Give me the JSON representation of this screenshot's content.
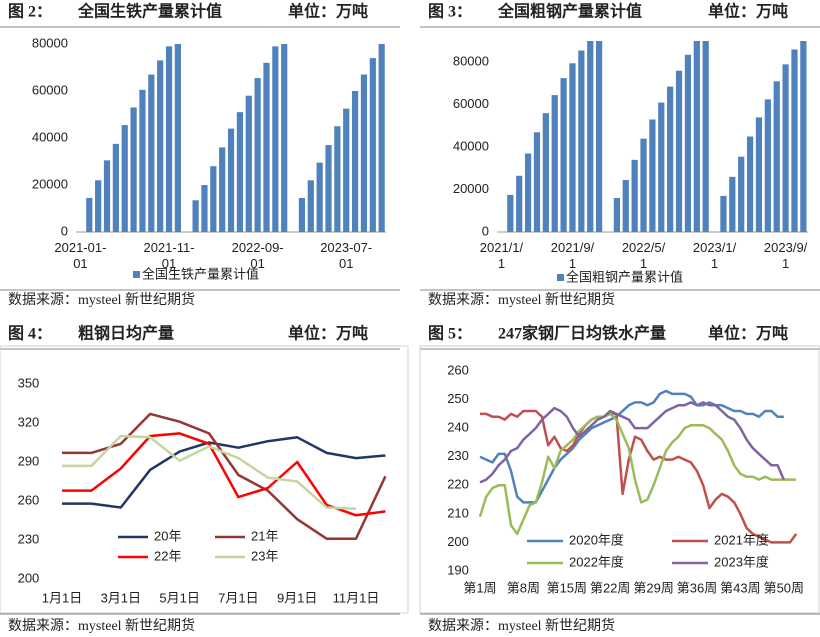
{
  "chart_data": [
    {
      "type": "bar",
      "figure": "图 2：",
      "title": "全国生铁产量累计值",
      "unit": "单位：万吨",
      "source": "数据来源：mysteel 新世纪期货",
      "categories": [
        "2021-01-01",
        null,
        null,
        null,
        null,
        null,
        null,
        null,
        null,
        null,
        "2021-11-01",
        null,
        null,
        null,
        null,
        null,
        null,
        null,
        null,
        null,
        "2022-09-01",
        null,
        null,
        null,
        null,
        null,
        null,
        null,
        null,
        null,
        "2023-07-01",
        null,
        null,
        null,
        null
      ],
      "series": [
        {
          "name": "全国生铁产量累计值",
          "color": "#4f81bd",
          "values": [
            null,
            14500,
            22000,
            30500,
            37500,
            45500,
            53000,
            60500,
            67000,
            73000,
            79000,
            80000,
            null,
            13500,
            20000,
            28000,
            36000,
            44000,
            51000,
            58000,
            65500,
            72000,
            79000,
            80000,
            null,
            14500,
            22000,
            29500,
            37000,
            45000,
            52500,
            60000,
            67000,
            74000,
            80000
          ]
        }
      ],
      "ylim": [
        0,
        80000
      ],
      "yticks": [
        0,
        20000,
        40000,
        60000,
        80000
      ]
    },
    {
      "type": "bar",
      "figure": "图 3：",
      "title": "全国粗钢产量累计值",
      "unit": "单位：万吨",
      "source": "数据来源：mysteel 新世纪期货",
      "categories": [
        "2021/1/1",
        null,
        null,
        null,
        null,
        null,
        null,
        null,
        "2021/9/1",
        null,
        null,
        null,
        null,
        null,
        null,
        null,
        "2022/5/1",
        null,
        null,
        null,
        null,
        null,
        null,
        null,
        "2023/1/1",
        null,
        null,
        null,
        null,
        null,
        null,
        null,
        "2023/9/1",
        null,
        null
      ],
      "series": [
        {
          "name": "全国粗钢产量累计值",
          "color": "#4f81bd",
          "values": [
            null,
            17500,
            26500,
            37000,
            47000,
            56000,
            64500,
            72500,
            79500,
            85500,
            90000,
            90000,
            null,
            16000,
            24500,
            34000,
            44000,
            53000,
            61000,
            68500,
            76000,
            83500,
            90000,
            90000,
            null,
            17000,
            26000,
            35500,
            45000,
            54000,
            62500,
            71000,
            79000,
            86000,
            90000
          ]
        }
      ],
      "ylim": [
        0,
        90000
      ],
      "yticks": [
        0,
        20000,
        40000,
        60000,
        80000
      ]
    },
    {
      "type": "line",
      "figure": "图 4：",
      "title": "粗钢日均产量",
      "unit": "单位：万吨",
      "source": "数据来源：mysteel 新世纪期货",
      "categories": [
        "1月1日",
        null,
        "3月1日",
        null,
        "5月1日",
        null,
        "7月1日",
        null,
        "9月1日",
        null,
        "11月1日",
        null
      ],
      "series": [
        {
          "name": "20年",
          "color": "#203864",
          "values": [
            258,
            258,
            255,
            284,
            298,
            305,
            301,
            306,
            309,
            297,
            293,
            295
          ]
        },
        {
          "name": "21年",
          "color": "#943634",
          "values": [
            297,
            297,
            304,
            327,
            321,
            312,
            280,
            268,
            246,
            231,
            231,
            279
          ]
        },
        {
          "name": "22年",
          "color": "#ff0000",
          "values": [
            268,
            268,
            285,
            310,
            312,
            304,
            263,
            270,
            290,
            257,
            249,
            252
          ]
        },
        {
          "name": "23年",
          "color": "#c3d69b",
          "values": [
            287,
            287,
            310,
            309,
            291,
            302,
            293,
            278,
            275,
            255,
            254,
            null
          ]
        }
      ],
      "ylim": [
        200,
        350
      ],
      "yticks": [
        200,
        230,
        260,
        290,
        320,
        350
      ]
    },
    {
      "type": "line",
      "figure": "图 5：",
      "title": "247家钢厂日均铁水产量",
      "unit": "单位：万吨",
      "source": "数据来源：mysteel 新世纪期货",
      "categories": [
        "第1周",
        null,
        null,
        null,
        null,
        null,
        null,
        "第8周",
        null,
        null,
        null,
        null,
        null,
        null,
        "第15周",
        null,
        null,
        null,
        null,
        null,
        null,
        "第22周",
        null,
        null,
        null,
        null,
        null,
        null,
        "第29周",
        null,
        null,
        null,
        null,
        null,
        null,
        "第36周",
        null,
        null,
        null,
        null,
        null,
        null,
        "第43周",
        null,
        null,
        null,
        null,
        null,
        null,
        "第50周",
        null,
        null
      ],
      "series": [
        {
          "name": "2020年度",
          "color": "#4f81bd",
          "values": [
            230,
            229,
            228,
            231,
            231,
            225,
            216,
            214,
            214,
            214,
            218,
            222,
            226,
            229,
            231,
            233,
            236,
            238,
            240,
            241,
            242,
            243,
            244,
            246,
            248,
            249,
            249,
            248,
            249,
            252,
            253,
            252,
            252,
            252,
            251,
            248,
            248,
            249,
            248,
            248,
            247,
            246,
            246,
            245,
            245,
            244,
            246,
            246,
            244,
            244,
            null,
            null
          ]
        },
        {
          "name": "2021年度",
          "color": "#c0504d",
          "values": [
            245,
            245,
            244,
            244,
            243,
            245,
            244,
            246,
            246,
            246,
            244,
            234,
            237,
            233,
            232,
            234,
            238,
            241,
            243,
            244,
            244,
            245,
            245,
            217,
            229,
            237,
            236,
            232,
            229,
            230,
            229,
            229,
            230,
            229,
            228,
            225,
            220,
            212,
            215,
            217,
            216,
            214,
            210,
            205,
            203,
            202,
            201,
            200,
            200,
            200,
            200,
            203
          ]
        },
        {
          "name": "2022年度",
          "color": "#9bbb59",
          "values": [
            209,
            216,
            219,
            220,
            220,
            206,
            203,
            208,
            213,
            214,
            221,
            230,
            226,
            232,
            234,
            236,
            239,
            241,
            243,
            244,
            244,
            245,
            243,
            238,
            233,
            222,
            214,
            215,
            220,
            226,
            232,
            235,
            237,
            240,
            241,
            241,
            241,
            240,
            238,
            236,
            232,
            227,
            224,
            223,
            223,
            222,
            223,
            222,
            222,
            222,
            222,
            222
          ]
        },
        {
          "name": "2023年度",
          "color": "#8064a2",
          "values": [
            221,
            222,
            224,
            227,
            229,
            232,
            233,
            236,
            238,
            240,
            243,
            245,
            247,
            246,
            244,
            240,
            237,
            239,
            241,
            243,
            244,
            246,
            245,
            244,
            243,
            240,
            240,
            240,
            242,
            244,
            246,
            247,
            248,
            248,
            249,
            248,
            249,
            248,
            248,
            246,
            244,
            243,
            240,
            236,
            233,
            231,
            229,
            227,
            227,
            222,
            null,
            null
          ]
        }
      ],
      "ylim": [
        190,
        260
      ],
      "yticks": [
        190,
        200,
        210,
        220,
        230,
        240,
        250,
        260
      ]
    }
  ]
}
